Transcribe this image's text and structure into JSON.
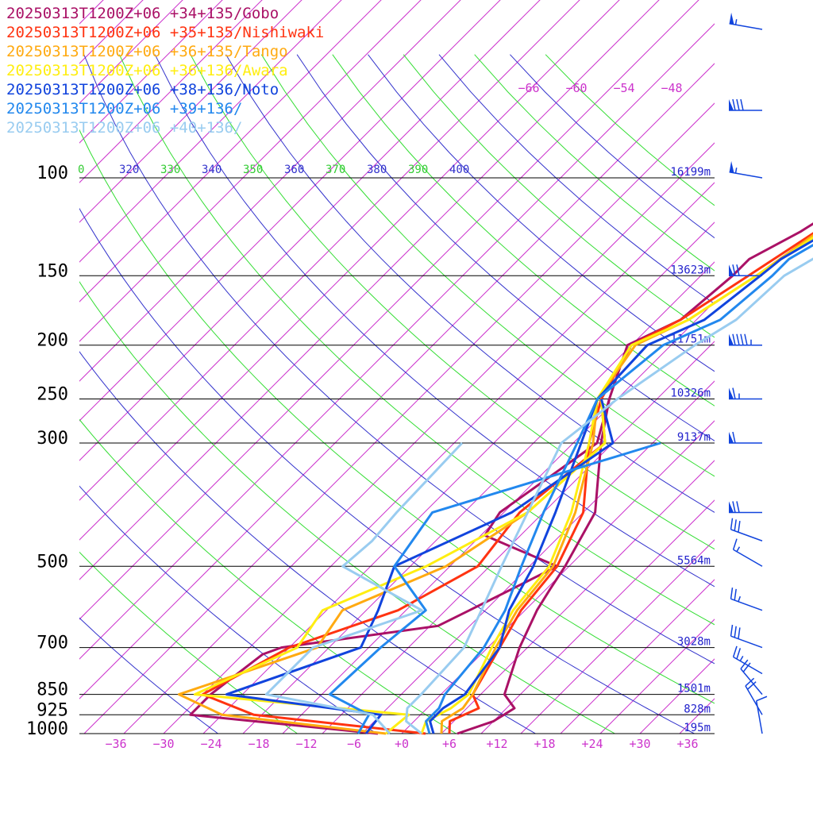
{
  "chart_data": {
    "type": "line",
    "title": "",
    "xlabel": "",
    "ylabel": "",
    "xlim": [
      -40,
      40
    ],
    "ylim": [
      1000,
      100
    ],
    "log_y": true,
    "grid": true,
    "legend_position": "top-left",
    "pressure_levels": [
      {
        "p": 100,
        "label": "100",
        "height": "16199m"
      },
      {
        "p": 150,
        "label": "150",
        "height": "13623m"
      },
      {
        "p": 200,
        "label": "200",
        "height": "11751m"
      },
      {
        "p": 250,
        "label": "250",
        "height": "10326m"
      },
      {
        "p": 300,
        "label": "300",
        "height": "9137m"
      },
      {
        "p": 500,
        "label": "500",
        "height": "5564m"
      },
      {
        "p": 700,
        "label": "700",
        "height": "3028m"
      },
      {
        "p": 850,
        "label": "850",
        "height": "1501m"
      },
      {
        "p": 925,
        "label": "925",
        "height": "828m"
      },
      {
        "p": 1000,
        "label": "1000",
        "height": "195m"
      }
    ],
    "x_ticks": [
      {
        "v": -36,
        "label": "−36"
      },
      {
        "v": -30,
        "label": "−30"
      },
      {
        "v": -24,
        "label": "−24"
      },
      {
        "v": -18,
        "label": "−18"
      },
      {
        "v": -12,
        "label": "−12"
      },
      {
        "v": -6,
        "label": "−6"
      },
      {
        "v": 0,
        "label": "+0"
      },
      {
        "v": 6,
        "label": "+6"
      },
      {
        "v": 12,
        "label": "+12"
      },
      {
        "v": 18,
        "label": "+18"
      },
      {
        "v": 24,
        "label": "+24"
      },
      {
        "v": 30,
        "label": "+30"
      },
      {
        "v": 36,
        "label": "+36"
      }
    ],
    "theta_labels": [
      {
        "label": "0",
        "color": "#33cc33"
      },
      {
        "label": "320",
        "color": "#3333cc"
      },
      {
        "label": "330",
        "color": "#33cc33"
      },
      {
        "label": "340",
        "color": "#3333cc"
      },
      {
        "label": "350",
        "color": "#33cc33"
      },
      {
        "label": "360",
        "color": "#3333cc"
      },
      {
        "label": "370",
        "color": "#33cc33"
      },
      {
        "label": "380",
        "color": "#3333cc"
      },
      {
        "label": "390",
        "color": "#33cc33"
      },
      {
        "label": "400",
        "color": "#3333cc"
      }
    ],
    "top_labels": [
      "−66",
      "−60",
      "−54",
      "−48"
    ],
    "isotherm_color": "#cc33cc",
    "dry_adiabat_colors": [
      "#3333cc",
      "#33dd33"
    ],
    "series": [
      {
        "name": "20250313T1200Z+06 +34+135/Gobo",
        "color": "#aa1166",
        "temp": [
          [
            1000,
            7.0
          ],
          [
            950,
            10.0
          ],
          [
            900,
            11.0
          ],
          [
            850,
            8.0
          ],
          [
            700,
            4.0
          ],
          [
            600,
            1.5
          ],
          [
            550,
            0.5
          ],
          [
            500,
            -0.5
          ],
          [
            400,
            -3.5
          ],
          [
            300,
            -11.5
          ],
          [
            250,
            -16.0
          ],
          [
            200,
            -20.5
          ],
          [
            180,
            -17.0
          ],
          [
            150,
            -16.0
          ],
          [
            140,
            -16.0
          ],
          [
            125,
            -13.0
          ],
          [
            100,
            -9.0
          ],
          [
            80,
            -3.0
          ],
          [
            60,
            1.0
          ],
          [
            40,
            6.0
          ]
        ],
        "dewp": [
          [
            1000,
            -3.0
          ],
          [
            925,
            -29.0
          ],
          [
            850,
            -29.0
          ],
          [
            720,
            -27.5
          ],
          [
            700,
            -26.0
          ],
          [
            640,
            -9.0
          ],
          [
            600,
            -7.0
          ],
          [
            500,
            -1.5
          ],
          [
            440,
            -14.5
          ],
          [
            400,
            -15.5
          ],
          [
            300,
            -12.0
          ],
          [
            250,
            -16.0
          ]
        ]
      },
      {
        "name": "20250313T1200Z+06 +35+135/Nishiwaki",
        "color": "#ff3311",
        "temp": [
          [
            1000,
            6.0
          ],
          [
            950,
            4.5
          ],
          [
            900,
            6.5
          ],
          [
            850,
            4.0
          ],
          [
            700,
            1.5
          ],
          [
            600,
            -0.5
          ],
          [
            500,
            -1.5
          ],
          [
            400,
            -5.0
          ],
          [
            300,
            -13.0
          ],
          [
            250,
            -17.0
          ],
          [
            200,
            -20.0
          ],
          [
            180,
            -17.0
          ],
          [
            150,
            -14.0
          ],
          [
            100,
            -7.5
          ],
          [
            80,
            -2.0
          ],
          [
            60,
            1.0
          ],
          [
            40,
            6.0
          ]
        ],
        "dewp": [
          [
            1000,
            3.0
          ],
          [
            925,
            -21.0
          ],
          [
            850,
            -30.0
          ],
          [
            700,
            -25.0
          ],
          [
            600,
            -16.0
          ],
          [
            500,
            -11.5
          ],
          [
            400,
            -13.0
          ],
          [
            300,
            -11.0
          ],
          [
            250,
            -17.0
          ]
        ]
      },
      {
        "name": "20250313T1200Z+06 +36+135/Tango",
        "color": "#ffaa11",
        "temp": [
          [
            1000,
            5.0
          ],
          [
            950,
            3.5
          ],
          [
            900,
            4.5
          ],
          [
            850,
            4.0
          ],
          [
            700,
            1.0
          ],
          [
            600,
            -1.0
          ],
          [
            500,
            -2.0
          ],
          [
            400,
            -6.0
          ],
          [
            300,
            -12.5
          ],
          [
            250,
            -17.5
          ],
          [
            200,
            -19.5
          ],
          [
            180,
            -16.0
          ],
          [
            150,
            -13.0
          ],
          [
            100,
            -8.0
          ],
          [
            80,
            -1.5
          ],
          [
            60,
            2.0
          ],
          [
            40,
            7.0
          ]
        ],
        "dewp": [
          [
            1000,
            -2.0
          ],
          [
            925,
            -25.0
          ],
          [
            850,
            -33.0
          ],
          [
            700,
            -21.5
          ],
          [
            600,
            -23.0
          ],
          [
            500,
            -15.5
          ],
          [
            400,
            -12.0
          ],
          [
            300,
            -11.0
          ],
          [
            250,
            -17.0
          ]
        ]
      },
      {
        "name": "20250313T1200Z+06 +36+136/Awara",
        "color": "#ffee11",
        "temp": [
          [
            1000,
            2.5
          ],
          [
            950,
            1.5
          ],
          [
            900,
            3.0
          ],
          [
            850,
            3.5
          ],
          [
            700,
            0.5
          ],
          [
            600,
            -1.5
          ],
          [
            500,
            -2.5
          ],
          [
            400,
            -6.5
          ],
          [
            300,
            -13.0
          ],
          [
            250,
            -17.5
          ],
          [
            200,
            -20.0
          ],
          [
            180,
            -16.0
          ],
          [
            150,
            -13.0
          ],
          [
            100,
            -7.0
          ],
          [
            80,
            -1.0
          ],
          [
            60,
            3.0
          ],
          [
            40,
            7.5
          ]
        ],
        "dewp": [
          [
            1000,
            -2.0
          ],
          [
            925,
            -1.5
          ],
          [
            850,
            -31.0
          ],
          [
            700,
            -24.0
          ],
          [
            600,
            -25.5
          ],
          [
            500,
            -18.0
          ],
          [
            400,
            -12.0
          ],
          [
            300,
            -11.0
          ],
          [
            250,
            -17.0
          ]
        ]
      },
      {
        "name": "20250313T1200Z+06 +38+136/Noto",
        "color": "#1144dd",
        "temp": [
          [
            1000,
            4.0
          ],
          [
            950,
            2.0
          ],
          [
            900,
            2.0
          ],
          [
            850,
            3.0
          ],
          [
            700,
            1.5
          ],
          [
            600,
            -2.0
          ],
          [
            500,
            -4.5
          ],
          [
            400,
            -8.5
          ],
          [
            300,
            -14.0
          ],
          [
            250,
            -17.5
          ],
          [
            200,
            -18.0
          ],
          [
            180,
            -14.0
          ],
          [
            150,
            -12.5
          ],
          [
            140,
            -12.0
          ],
          [
            125,
            -9.5
          ],
          [
            100,
            -5.5
          ],
          [
            80,
            -0.5
          ],
          [
            60,
            3.5
          ],
          [
            40,
            8.5
          ]
        ],
        "dewp": [
          [
            1000,
            -4.5
          ],
          [
            925,
            -5.0
          ],
          [
            850,
            -27.0
          ],
          [
            700,
            -16.0
          ],
          [
            600,
            -18.5
          ],
          [
            500,
            -22.0
          ],
          [
            400,
            -14.0
          ],
          [
            300,
            -10.0
          ],
          [
            250,
            -17.0
          ]
        ]
      },
      {
        "name": "20250313T1200Z+06 +39+136/",
        "color": "#2288ee",
        "temp": [
          [
            1000,
            3.5
          ],
          [
            950,
            1.5
          ],
          [
            900,
            1.5
          ],
          [
            850,
            0.5
          ],
          [
            700,
            -0.5
          ],
          [
            600,
            -2.5
          ],
          [
            500,
            -6.0
          ],
          [
            400,
            -10.0
          ],
          [
            300,
            -14.5
          ],
          [
            250,
            -17.5
          ],
          [
            200,
            -16.0
          ],
          [
            180,
            -12.0
          ],
          [
            150,
            -11.0
          ],
          [
            140,
            -11.0
          ],
          [
            125,
            -8.5
          ],
          [
            100,
            -4.5
          ],
          [
            80,
            0.0
          ],
          [
            60,
            4.0
          ],
          [
            40,
            10.0
          ]
        ],
        "dewp": [
          [
            1000,
            -5.5
          ],
          [
            925,
            -6.5
          ],
          [
            850,
            -14.0
          ],
          [
            700,
            -13.5
          ],
          [
            600,
            -12.5
          ],
          [
            500,
            -22.0
          ],
          [
            400,
            -24.0
          ],
          [
            300,
            -4.0
          ]
        ]
      },
      {
        "name": "20250313T1200Z+06 +40+136/",
        "color": "#99ccf0",
        "temp": [
          [
            1000,
            2.5
          ],
          [
            950,
            -1.0
          ],
          [
            900,
            -2.5
          ],
          [
            850,
            -2.5
          ],
          [
            700,
            -3.0
          ],
          [
            600,
            -5.5
          ],
          [
            500,
            -8.5
          ],
          [
            400,
            -12.0
          ],
          [
            300,
            -16.5
          ],
          [
            250,
            -15.0
          ],
          [
            200,
            -12.0
          ],
          [
            180,
            -10.0
          ],
          [
            150,
            -9.5
          ],
          [
            140,
            -8.0
          ],
          [
            125,
            -6.0
          ],
          [
            100,
            -2.0
          ],
          [
            80,
            2.5
          ],
          [
            60,
            8.0
          ],
          [
            40,
            11.0
          ]
        ],
        "dewp": [
          [
            1000,
            -1.5
          ],
          [
            925,
            -6.0
          ],
          [
            850,
            -22.0
          ],
          [
            700,
            -22.0
          ],
          [
            600,
            -13.0
          ],
          [
            500,
            -28.5
          ],
          [
            450,
            -28.0
          ],
          [
            400,
            -28.5
          ],
          [
            300,
            -29.0
          ]
        ]
      }
    ]
  },
  "wind_barbs": [
    {
      "p": 45,
      "dir": 280,
      "spd": 55
    },
    {
      "p": 75,
      "dir": 270,
      "spd": 80
    },
    {
      "p": 100,
      "dir": 280,
      "spd": 55
    },
    {
      "p": 150,
      "dir": 270,
      "spd": 70
    },
    {
      "p": 200,
      "dir": 270,
      "spd": 95
    },
    {
      "p": 250,
      "dir": 270,
      "spd": 65
    },
    {
      "p": 300,
      "dir": 270,
      "spd": 60
    },
    {
      "p": 400,
      "dir": 270,
      "spd": 70
    },
    {
      "p": 450,
      "dir": 290,
      "spd": 30
    },
    {
      "p": 500,
      "dir": 300,
      "spd": 15
    },
    {
      "p": 600,
      "dir": 290,
      "spd": 25
    },
    {
      "p": 700,
      "dir": 290,
      "spd": 30
    },
    {
      "p": 780,
      "dir": 300,
      "spd": 25
    },
    {
      "p": 850,
      "dir": 320,
      "spd": 20
    },
    {
      "p": 925,
      "dir": 330,
      "spd": 20
    },
    {
      "p": 1000,
      "dir": 350,
      "spd": 10
    }
  ]
}
